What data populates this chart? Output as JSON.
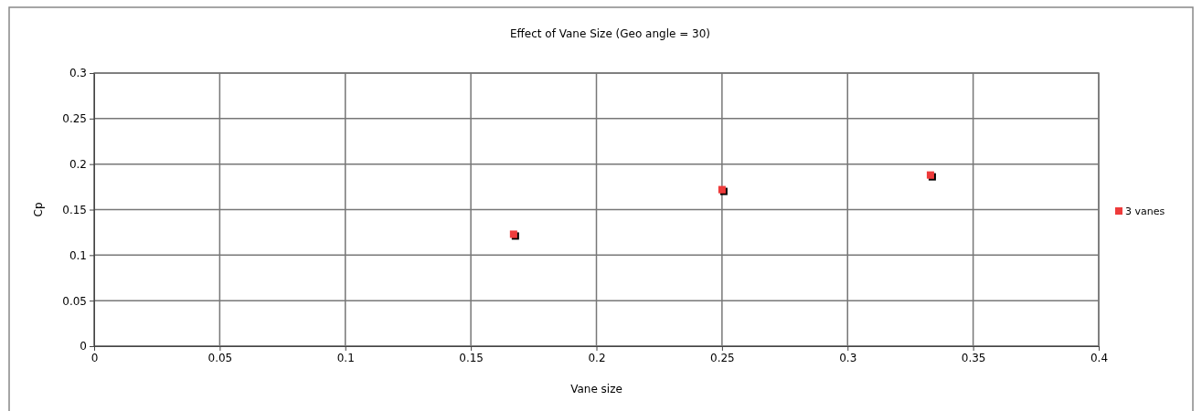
{
  "chart_data": {
    "type": "scatter",
    "title": "Effect of Vane Size (Geo angle = 30)",
    "xlabel": "Vane size",
    "ylabel": "Cp",
    "series": [
      {
        "name": "3 vanes",
        "color": "#ee3b3b",
        "x": [
          0.167,
          0.25,
          0.333
        ],
        "values": [
          0.123,
          0.172,
          0.188
        ]
      }
    ],
    "xlim": [
      0,
      0.4
    ],
    "xticks": [
      0,
      0.05,
      0.1,
      0.15,
      0.2,
      0.25,
      0.3,
      0.35,
      0.4
    ],
    "ylim": [
      0,
      0.3
    ],
    "yticks": [
      0,
      0.05,
      0.1,
      0.15,
      0.2,
      0.25,
      0.3
    ],
    "grid": true,
    "legend": "right",
    "marker": "square"
  }
}
